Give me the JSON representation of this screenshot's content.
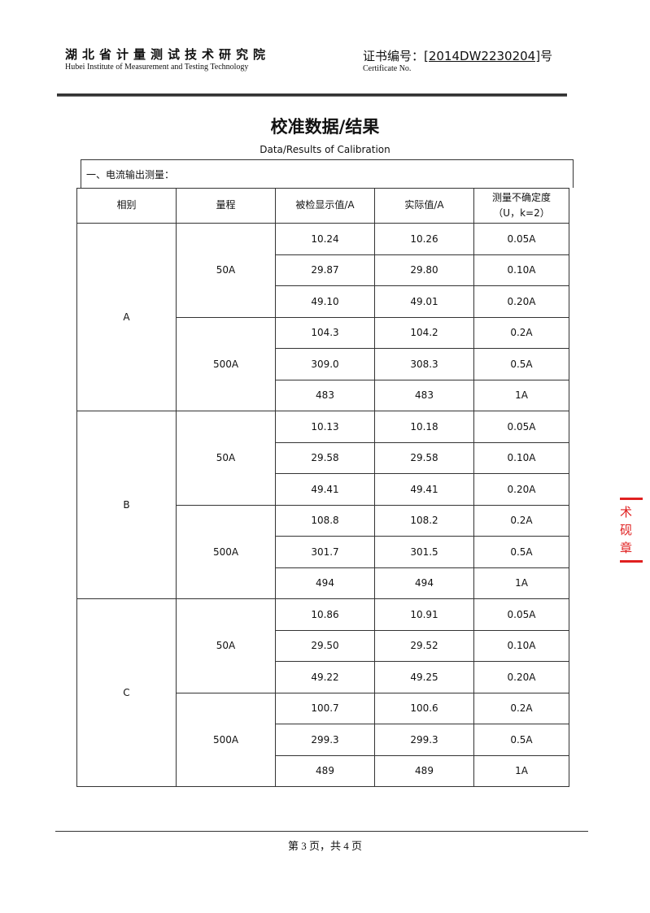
{
  "header": {
    "org_cn": "湖北省计量测试技术研究院",
    "org_en": "Hubei Institute of Measurement and Testing Technology",
    "cert_label_cn": "证书编号：",
    "cert_number": "[2014DW2230204]",
    "cert_suffix": "号",
    "cert_label_en": "Certificate No."
  },
  "title": "校准数据/结果",
  "subtitle": "Data/Results of Calibration",
  "section": "一、电流输出测量：",
  "table": {
    "headers": [
      "相别",
      "量程",
      "被检显示值/A",
      "实际值/A",
      "测量不确定度",
      "（U，k=2）"
    ],
    "phases": [
      {
        "phase": "A",
        "ranges": [
          {
            "range": "50A",
            "rows": [
              [
                "10.24",
                "10.26",
                "0.05A"
              ],
              [
                "29.87",
                "29.80",
                "0.10A"
              ],
              [
                "49.10",
                "49.01",
                "0.20A"
              ]
            ]
          },
          {
            "range": "500A",
            "rows": [
              [
                "104.3",
                "104.2",
                "0.2A"
              ],
              [
                "309.0",
                "308.3",
                "0.5A"
              ],
              [
                "483",
                "483",
                "1A"
              ]
            ]
          }
        ]
      },
      {
        "phase": "B",
        "ranges": [
          {
            "range": "50A",
            "rows": [
              [
                "10.13",
                "10.18",
                "0.05A"
              ],
              [
                "29.58",
                "29.58",
                "0.10A"
              ],
              [
                "49.41",
                "49.41",
                "0.20A"
              ]
            ]
          },
          {
            "range": "500A",
            "rows": [
              [
                "108.8",
                "108.2",
                "0.2A"
              ],
              [
                "301.7",
                "301.5",
                "0.5A"
              ],
              [
                "494",
                "494",
                "1A"
              ]
            ]
          }
        ]
      },
      {
        "phase": "C",
        "ranges": [
          {
            "range": "50A",
            "rows": [
              [
                "10.86",
                "10.91",
                "0.05A"
              ],
              [
                "29.50",
                "29.52",
                "0.10A"
              ],
              [
                "49.22",
                "49.25",
                "0.20A"
              ]
            ]
          },
          {
            "range": "500A",
            "rows": [
              [
                "100.7",
                "100.6",
                "0.2A"
              ],
              [
                "299.3",
                "299.3",
                "0.5A"
              ],
              [
                "489",
                "489",
                "1A"
              ]
            ]
          }
        ]
      }
    ]
  },
  "footer": "第 3 页，共 4 页",
  "stamp": "术砚章",
  "colors": {
    "stamp": "#e02020"
  }
}
